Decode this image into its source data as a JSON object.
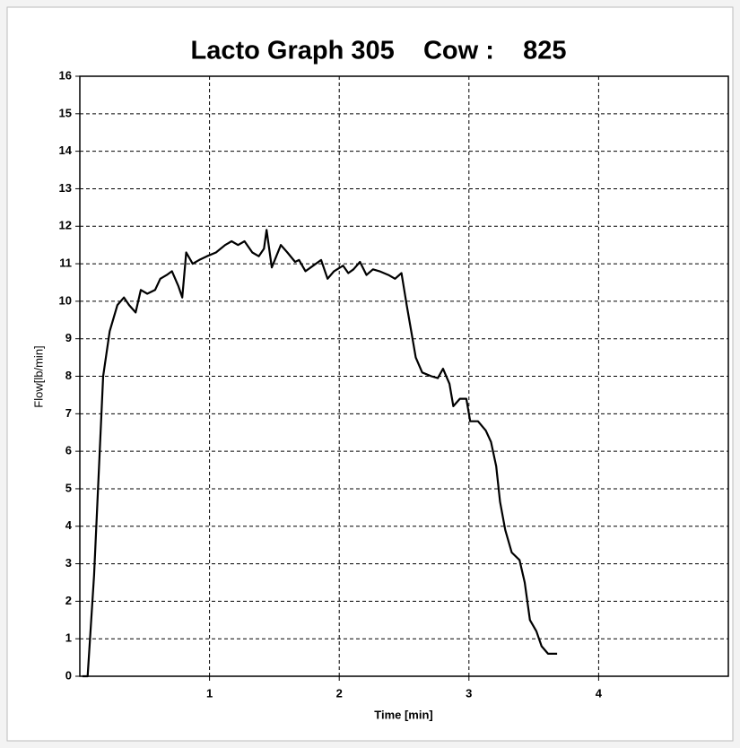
{
  "chart_data": {
    "type": "line",
    "title": "Lacto Graph 305    Cow :    825",
    "x_label": "Time [min]",
    "y_label": "Flow[lb/min]",
    "xlim": [
      0,
      5
    ],
    "xticks": [
      1,
      2,
      3,
      4
    ],
    "ylim": [
      0,
      16
    ],
    "yticks": [
      0,
      1,
      2,
      3,
      4,
      5,
      6,
      7,
      8,
      9,
      10,
      11,
      12,
      13,
      14,
      15,
      16
    ],
    "grid": true,
    "series": [
      {
        "color": "#000000",
        "x": [
          0.02,
          0.06,
          0.11,
          0.18,
          0.23,
          0.29,
          0.34,
          0.38,
          0.43,
          0.47,
          0.52,
          0.58,
          0.62,
          0.67,
          0.71,
          0.76,
          0.79,
          0.82,
          0.87,
          0.92,
          0.98,
          1.05,
          1.12,
          1.17,
          1.22,
          1.27,
          1.33,
          1.38,
          1.42,
          1.44,
          1.48,
          1.55,
          1.6,
          1.66,
          1.69,
          1.74,
          1.78,
          1.86,
          1.91,
          1.96,
          2.03,
          2.07,
          2.11,
          2.16,
          2.21,
          2.26,
          2.31,
          2.38,
          2.43,
          2.48,
          2.52,
          2.56,
          2.59,
          2.64,
          2.71,
          2.76,
          2.8,
          2.85,
          2.88,
          2.93,
          2.98,
          3.01,
          3.07,
          3.13,
          3.17,
          3.21,
          3.24,
          3.28,
          3.33,
          3.39,
          3.43,
          3.47,
          3.52,
          3.56,
          3.61,
          3.68
        ],
        "values": [
          0,
          0,
          2.7,
          8.0,
          9.2,
          9.9,
          10.1,
          9.9,
          9.7,
          10.3,
          10.2,
          10.3,
          10.6,
          10.7,
          10.8,
          10.4,
          10.1,
          11.3,
          11.0,
          11.1,
          11.2,
          11.3,
          11.5,
          11.6,
          11.5,
          11.6,
          11.3,
          11.2,
          11.4,
          11.9,
          10.9,
          11.5,
          11.3,
          11.05,
          11.1,
          10.8,
          10.9,
          11.1,
          10.6,
          10.8,
          10.95,
          10.75,
          10.85,
          11.05,
          10.7,
          10.85,
          10.8,
          10.7,
          10.6,
          10.75,
          9.9,
          9.1,
          8.5,
          8.1,
          8.0,
          7.95,
          8.2,
          7.8,
          7.2,
          7.4,
          7.4,
          6.8,
          6.8,
          6.55,
          6.25,
          5.6,
          4.65,
          3.9,
          3.3,
          3.1,
          2.5,
          1.5,
          1.2,
          0.8,
          0.6,
          0.6
        ]
      }
    ]
  }
}
